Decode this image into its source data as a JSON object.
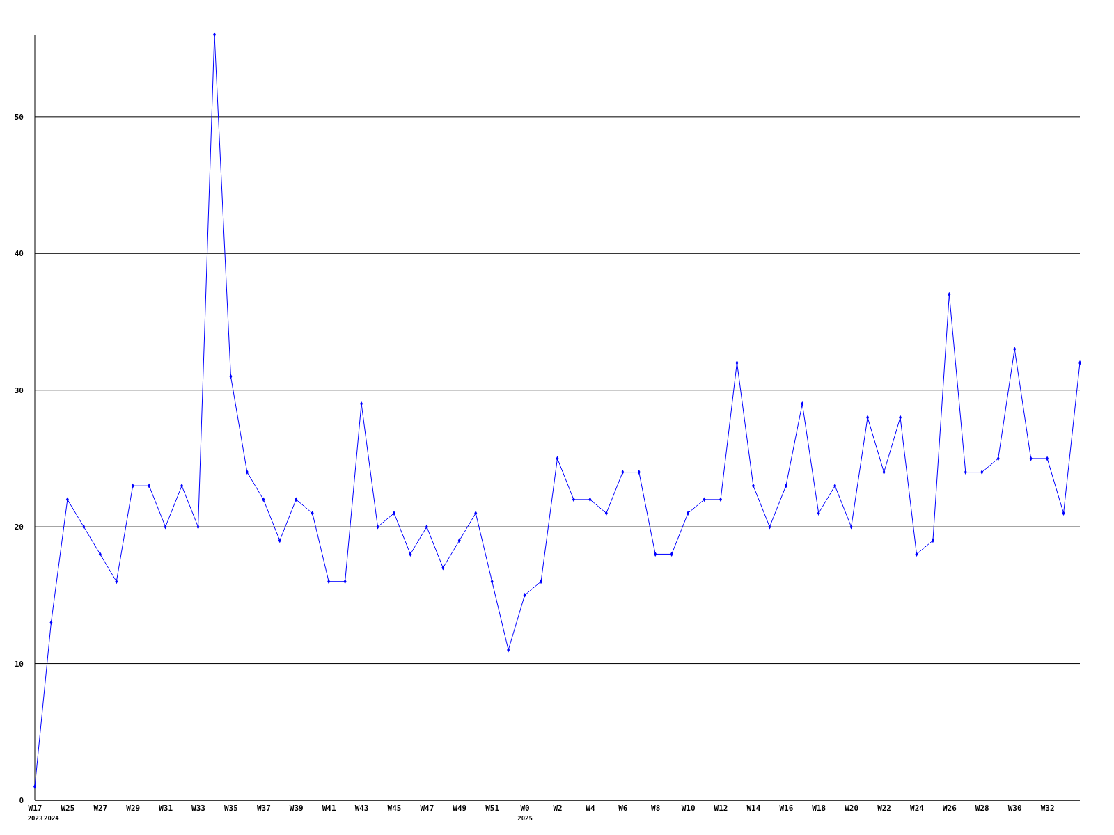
{
  "chart_data": {
    "type": "line",
    "categories": [
      "W17\n2023",
      "\n2024",
      "W25",
      null,
      "W27",
      null,
      "W29",
      null,
      "W31",
      null,
      "W33",
      null,
      "W35",
      null,
      "W37",
      null,
      "W39",
      null,
      "W41",
      null,
      "W43",
      null,
      "W45",
      null,
      "W47",
      null,
      "W49",
      null,
      "W51",
      null,
      "W0\n2025",
      null,
      "W2",
      null,
      "W4",
      null,
      "W6",
      null,
      "W8",
      null,
      "W10",
      null,
      "W12",
      null,
      "W14",
      null,
      "W16",
      null,
      "W18",
      null,
      "W20",
      null,
      "W22",
      null,
      "W24",
      null,
      "W26",
      null,
      "W28",
      null,
      "W30",
      null,
      "W32",
      null,
      null
    ],
    "series": [
      {
        "color": "#0000ff",
        "values": [
          1,
          13,
          22,
          20,
          18,
          16,
          23,
          23,
          20,
          23,
          20,
          56,
          31,
          24,
          22,
          19,
          22,
          21,
          16,
          16,
          29,
          20,
          21,
          18,
          20,
          17,
          19,
          21,
          16,
          11,
          15,
          16,
          25,
          22,
          22,
          21,
          24,
          24,
          18,
          18,
          21,
          22,
          22,
          32,
          23,
          20,
          23,
          29,
          21,
          23,
          20,
          28,
          24,
          28,
          18,
          19,
          37,
          24,
          24,
          25,
          33,
          25,
          25,
          21,
          32
        ]
      }
    ],
    "ylim": [
      0,
      56
    ],
    "yticks": [
      0,
      10,
      20,
      30,
      40,
      50
    ],
    "grid": "y",
    "marker": "diamond",
    "line_style": "solid"
  }
}
